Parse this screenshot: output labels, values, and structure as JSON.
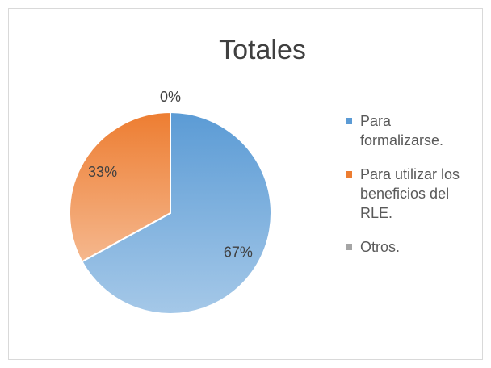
{
  "chart_data": {
    "type": "pie",
    "title": "Totales",
    "categories": [
      "Para formalizarse.",
      "Para utilizar los beneficios del RLE.",
      "Otros."
    ],
    "values": [
      67,
      33,
      0
    ],
    "value_labels": [
      "67%",
      "33%",
      "0%"
    ],
    "colors": [
      "#5b9bd5",
      "#ed7d31",
      "#a5a5a5"
    ],
    "legend": "right"
  }
}
